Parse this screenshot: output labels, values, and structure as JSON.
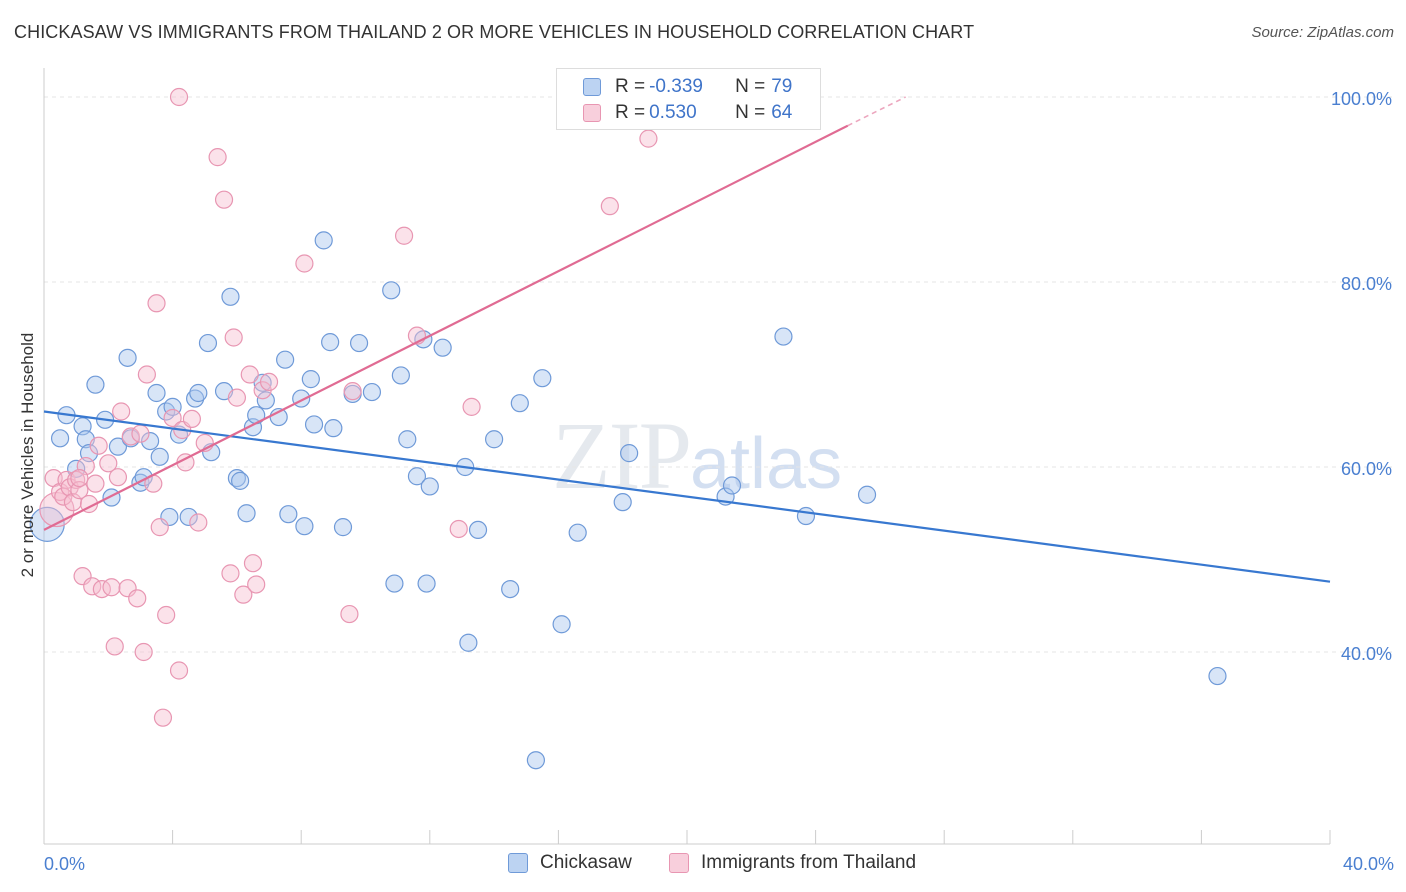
{
  "header": {
    "title": "CHICKASAW VS IMMIGRANTS FROM THAILAND 2 OR MORE VEHICLES IN HOUSEHOLD CORRELATION CHART",
    "source": "Source: ZipAtlas.com"
  },
  "watermark": {
    "zip": "ZIP",
    "atlas": "atlas"
  },
  "legend": {
    "rows": [
      {
        "r_label": "R =",
        "r_value": "-0.339",
        "n_label": "N =",
        "n_value": "79"
      },
      {
        "r_label": "R =",
        "r_value": "0.530",
        "n_label": "N =",
        "n_value": "64"
      }
    ],
    "bottom": [
      {
        "label": "Chickasaw"
      },
      {
        "label": "Immigrants from Thailand"
      }
    ]
  },
  "colors": {
    "blue_fill": "#a9c6ee",
    "blue_stroke": "#6f9ad8",
    "blue_line": "#3878d0",
    "pink_fill": "#f6bfd0",
    "pink_stroke": "#e896b2",
    "pink_line": "#e06b93",
    "tick_text": "#4a7fd0",
    "grid": "#e6e6e6"
  },
  "chart_data": {
    "type": "scatter",
    "title": "CHICKASAW VS IMMIGRANTS FROM THAILAND 2 OR MORE VEHICLES IN HOUSEHOLD CORRELATION CHART",
    "ylabel": "2 or more Vehicles in Household",
    "xlim": [
      0,
      40
    ],
    "ylim": [
      20,
      102
    ],
    "x_ticks": [
      "0.0%",
      "40.0%"
    ],
    "y_ticks": [
      {
        "value": 100,
        "label": "100.0%"
      },
      {
        "value": 80,
        "label": "80.0%"
      },
      {
        "value": 60,
        "label": "60.0%"
      },
      {
        "value": 40,
        "label": "40.0%"
      }
    ],
    "grid": "horizontal dashed",
    "legend_placement": "top-center",
    "series": [
      {
        "name": "Chickasaw",
        "r": -0.339,
        "n": 79,
        "trend": {
          "x": [
            0,
            40
          ],
          "y": [
            66.0,
            47.6
          ]
        },
        "points": [
          [
            0.5,
            63.1
          ],
          [
            0.7,
            65.6
          ],
          [
            1.0,
            59.8
          ],
          [
            1.2,
            64.4
          ],
          [
            1.3,
            63.0
          ],
          [
            1.4,
            61.5
          ],
          [
            1.6,
            68.9
          ],
          [
            1.9,
            65.1
          ],
          [
            2.1,
            56.7
          ],
          [
            2.3,
            62.2
          ],
          [
            2.6,
            71.8
          ],
          [
            2.7,
            63.1
          ],
          [
            3.0,
            58.3
          ],
          [
            3.1,
            58.9
          ],
          [
            3.3,
            62.8
          ],
          [
            3.5,
            68.0
          ],
          [
            3.6,
            61.1
          ],
          [
            3.8,
            66.0
          ],
          [
            3.9,
            54.6
          ],
          [
            4.0,
            66.5
          ],
          [
            4.2,
            63.5
          ],
          [
            4.5,
            54.6
          ],
          [
            4.7,
            67.4
          ],
          [
            4.8,
            68.0
          ],
          [
            5.1,
            73.4
          ],
          [
            5.2,
            61.6
          ],
          [
            5.6,
            68.2
          ],
          [
            5.8,
            78.4
          ],
          [
            6.0,
            58.8
          ],
          [
            6.1,
            58.5
          ],
          [
            6.3,
            55.0
          ],
          [
            6.5,
            64.3
          ],
          [
            6.6,
            65.6
          ],
          [
            6.8,
            69.1
          ],
          [
            6.9,
            67.2
          ],
          [
            7.3,
            65.4
          ],
          [
            7.5,
            71.6
          ],
          [
            7.6,
            54.9
          ],
          [
            8.0,
            67.4
          ],
          [
            8.1,
            53.6
          ],
          [
            8.3,
            69.5
          ],
          [
            8.4,
            64.6
          ],
          [
            8.7,
            84.5
          ],
          [
            8.9,
            73.5
          ],
          [
            9.0,
            64.2
          ],
          [
            9.3,
            53.5
          ],
          [
            9.6,
            67.9
          ],
          [
            9.8,
            73.4
          ],
          [
            10.2,
            68.1
          ],
          [
            10.8,
            79.1
          ],
          [
            10.9,
            47.4
          ],
          [
            11.1,
            69.9
          ],
          [
            11.3,
            63.0
          ],
          [
            11.6,
            59.0
          ],
          [
            11.8,
            73.8
          ],
          [
            11.9,
            47.4
          ],
          [
            12.0,
            57.9
          ],
          [
            12.4,
            72.9
          ],
          [
            13.1,
            60.0
          ],
          [
            13.2,
            41.0
          ],
          [
            13.5,
            53.2
          ],
          [
            14.0,
            63.0
          ],
          [
            14.5,
            46.8
          ],
          [
            14.8,
            66.9
          ],
          [
            15.3,
            28.3
          ],
          [
            15.5,
            69.6
          ],
          [
            16.1,
            43.0
          ],
          [
            16.6,
            52.9
          ],
          [
            18.0,
            56.2
          ],
          [
            18.2,
            61.5
          ],
          [
            21.2,
            56.8
          ],
          [
            21.4,
            58.0
          ],
          [
            23.0,
            74.1
          ],
          [
            23.7,
            54.7
          ],
          [
            25.6,
            57.0
          ],
          [
            36.5,
            37.4
          ],
          [
            0.1,
            53.8
          ]
        ]
      },
      {
        "name": "Immigrants from Thailand",
        "r": 0.53,
        "n": 64,
        "trend": {
          "x": [
            0,
            25
          ],
          "y": [
            53.2,
            96.9
          ],
          "dashed_to": {
            "x": 26.8,
            "y": 100.0
          }
        },
        "points": [
          [
            0.3,
            58.8
          ],
          [
            0.4,
            55.4
          ],
          [
            0.5,
            57.3
          ],
          [
            0.6,
            56.8
          ],
          [
            0.7,
            58.6
          ],
          [
            0.8,
            57.8
          ],
          [
            0.9,
            56.2
          ],
          [
            1.0,
            58.6
          ],
          [
            1.1,
            57.5
          ],
          [
            1.2,
            48.2
          ],
          [
            1.3,
            60.1
          ],
          [
            1.4,
            56.0
          ],
          [
            1.5,
            47.1
          ],
          [
            1.6,
            58.2
          ],
          [
            1.7,
            62.3
          ],
          [
            1.8,
            46.8
          ],
          [
            2.0,
            60.4
          ],
          [
            2.1,
            47.0
          ],
          [
            2.2,
            40.6
          ],
          [
            2.3,
            58.9
          ],
          [
            2.4,
            66.0
          ],
          [
            2.6,
            46.9
          ],
          [
            2.7,
            63.3
          ],
          [
            2.9,
            45.8
          ],
          [
            3.0,
            63.6
          ],
          [
            3.1,
            40.0
          ],
          [
            3.2,
            70.0
          ],
          [
            3.4,
            58.2
          ],
          [
            3.5,
            77.7
          ],
          [
            3.6,
            53.5
          ],
          [
            3.7,
            32.9
          ],
          [
            3.8,
            44.0
          ],
          [
            4.0,
            65.3
          ],
          [
            4.2,
            38.0
          ],
          [
            4.3,
            64.0
          ],
          [
            4.4,
            60.5
          ],
          [
            4.6,
            65.2
          ],
          [
            4.8,
            54.0
          ],
          [
            5.0,
            62.6
          ],
          [
            5.4,
            93.5
          ],
          [
            5.6,
            88.9
          ],
          [
            5.8,
            48.5
          ],
          [
            5.9,
            74.0
          ],
          [
            6.0,
            67.5
          ],
          [
            6.2,
            46.2
          ],
          [
            6.4,
            70.0
          ],
          [
            6.5,
            49.6
          ],
          [
            6.6,
            47.3
          ],
          [
            6.8,
            68.3
          ],
          [
            7.0,
            69.2
          ],
          [
            8.1,
            82.0
          ],
          [
            9.5,
            44.1
          ],
          [
            9.6,
            68.2
          ],
          [
            11.2,
            85.0
          ],
          [
            11.6,
            74.2
          ],
          [
            12.9,
            53.3
          ],
          [
            13.3,
            66.5
          ],
          [
            17.6,
            88.2
          ],
          [
            18.8,
            95.5
          ],
          [
            22.8,
            100.0
          ],
          [
            4.2,
            100.0
          ],
          [
            1.1,
            58.8
          ]
        ]
      }
    ]
  }
}
